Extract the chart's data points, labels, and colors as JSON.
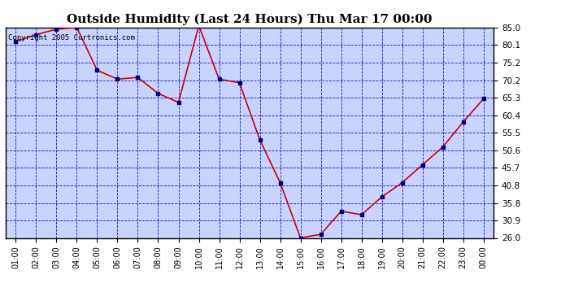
{
  "title": "Outside Humidity (Last 24 Hours) Thu Mar 17 00:00",
  "x_labels": [
    "01:00",
    "02:00",
    "03:00",
    "04:00",
    "05:00",
    "06:00",
    "07:00",
    "08:00",
    "09:00",
    "10:00",
    "11:00",
    "12:00",
    "13:00",
    "14:00",
    "15:00",
    "16:00",
    "17:00",
    "18:00",
    "19:00",
    "20:00",
    "21:00",
    "22:00",
    "23:00",
    "00:00"
  ],
  "x_values": [
    1,
    2,
    3,
    4,
    5,
    6,
    7,
    8,
    9,
    10,
    11,
    12,
    13,
    14,
    15,
    16,
    17,
    18,
    19,
    20,
    21,
    22,
    23,
    24
  ],
  "y_values": [
    81.0,
    83.0,
    84.5,
    85.0,
    73.0,
    70.5,
    71.0,
    66.5,
    64.0,
    85.5,
    70.5,
    69.5,
    53.5,
    41.5,
    26.0,
    27.0,
    33.5,
    32.5,
    37.5,
    41.5,
    46.5,
    51.5,
    58.5,
    65.0
  ],
  "ylim": [
    26.0,
    85.0
  ],
  "yticks": [
    26.0,
    30.9,
    35.8,
    40.8,
    45.7,
    50.6,
    55.5,
    60.4,
    65.3,
    70.2,
    75.2,
    80.1,
    85.0
  ],
  "background_color": "#ffffff",
  "plot_bg_color": "#c8d4ff",
  "line_color": "#cc0000",
  "marker_color": "#000080",
  "grid_color": "#0000bb",
  "title_fontsize": 11,
  "copyright_text": "Copyright 2005 Curtronics.com"
}
